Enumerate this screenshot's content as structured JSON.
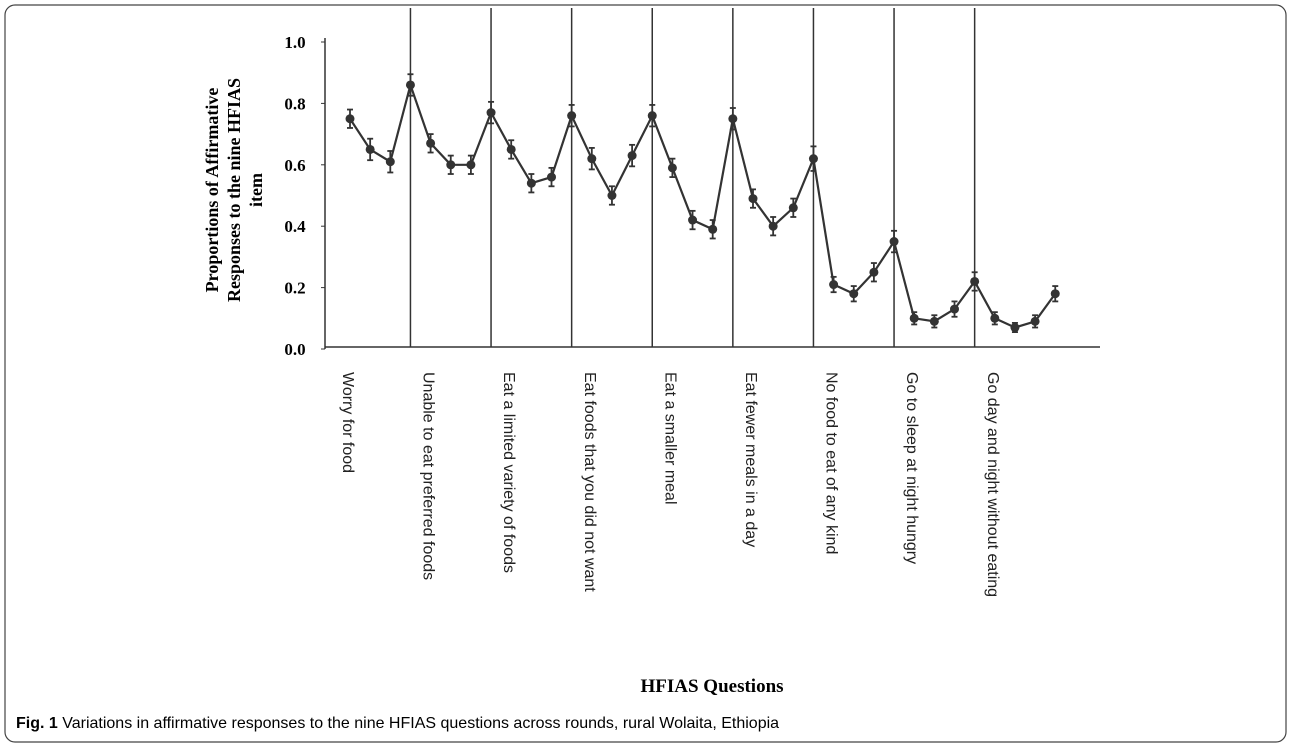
{
  "chart_data": {
    "type": "line",
    "y_label": [
      "Proportions of Affirmative",
      "Responses to the nine HFIAS",
      "item"
    ],
    "x_label": "HFIAS Questions",
    "categories": [
      "Worry for food",
      null,
      null,
      null,
      "Unable to eat preferred foods",
      null,
      null,
      null,
      "Eat a limited variety of foods",
      null,
      null,
      null,
      "Eat foods that you did not want",
      null,
      null,
      null,
      "Eat a smaller meal",
      null,
      null,
      null,
      "Eat fewer meals in a day",
      null,
      null,
      null,
      "No food to eat of any kind",
      null,
      null,
      null,
      "Go to sleep at night hungry",
      null,
      null,
      null,
      "Go day and night without eating",
      null,
      null,
      null
    ],
    "values": [
      0.75,
      0.65,
      0.61,
      0.86,
      0.67,
      0.6,
      0.6,
      0.77,
      0.65,
      0.54,
      0.56,
      0.76,
      0.62,
      0.5,
      0.63,
      0.76,
      0.59,
      0.42,
      0.39,
      0.75,
      0.49,
      0.4,
      0.46,
      0.62,
      0.21,
      0.18,
      0.25,
      0.35,
      0.1,
      0.09,
      0.13,
      0.22,
      0.1,
      0.07,
      0.09,
      0.18
    ],
    "errors": [
      0.03,
      0.035,
      0.035,
      0.035,
      0.03,
      0.03,
      0.03,
      0.035,
      0.03,
      0.03,
      0.03,
      0.035,
      0.035,
      0.03,
      0.035,
      0.035,
      0.03,
      0.03,
      0.03,
      0.035,
      0.03,
      0.03,
      0.03,
      0.04,
      0.025,
      0.025,
      0.03,
      0.035,
      0.02,
      0.02,
      0.025,
      0.03,
      0.02,
      0.015,
      0.02,
      0.025
    ],
    "color": "#333333",
    "ylim": [
      0,
      1.0
    ],
    "yticks": [
      {
        "value": 0,
        "label": "0.0"
      },
      {
        "value": 0.2,
        "label": "0.2"
      },
      {
        "value": 0.4,
        "label": "0.4"
      },
      {
        "value": 0.6,
        "label": "0.6"
      },
      {
        "value": 0.8,
        "label": "0.8"
      },
      {
        "value": 1.0,
        "label": "1.0"
      }
    ]
  },
  "caption": {
    "label": "Fig. 1",
    "text": "Variations in affirmative responses to the nine HFIAS questions across rounds, rural Wolaita, Ethiopia"
  }
}
